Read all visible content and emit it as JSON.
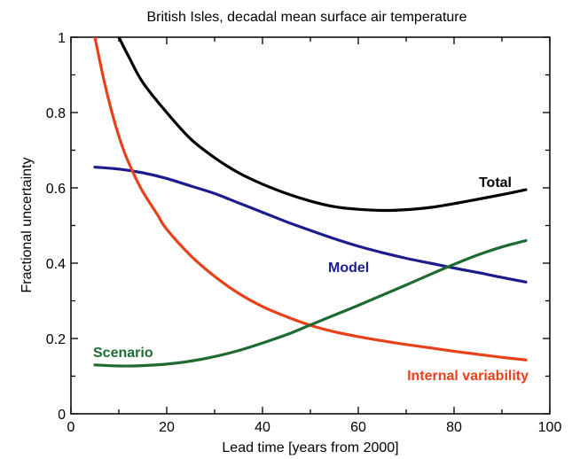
{
  "chart_data": {
    "type": "line",
    "title": "British Isles, decadal mean surface air temperature",
    "xlabel": "Lead time  [years from 2000]",
    "ylabel": "Fractional uncertainty",
    "xlim": [
      0,
      100
    ],
    "ylim": [
      0,
      1
    ],
    "xticks": [
      0,
      20,
      40,
      60,
      80,
      100
    ],
    "yticks": [
      0,
      0.2,
      0.4,
      0.6,
      0.8,
      1
    ],
    "ytick_labels": [
      "0",
      "0.2",
      "0.4",
      "0.6",
      "0.8",
      "1"
    ],
    "grid": false,
    "series": [
      {
        "name": "Total",
        "color": "#000000",
        "x": [
          10,
          12,
          15,
          20,
          25,
          30,
          35,
          40,
          45,
          50,
          55,
          60,
          65,
          70,
          75,
          80,
          85,
          90,
          95
        ],
        "y": [
          1.0,
          0.95,
          0.88,
          0.8,
          0.73,
          0.68,
          0.64,
          0.61,
          0.585,
          0.565,
          0.55,
          0.543,
          0.54,
          0.542,
          0.548,
          0.558,
          0.57,
          0.582,
          0.595
        ]
      },
      {
        "name": "Model",
        "color": "#1c1c8c",
        "x": [
          5,
          10,
          15,
          20,
          25,
          30,
          35,
          40,
          45,
          50,
          55,
          60,
          65,
          70,
          75,
          80,
          85,
          90,
          95
        ],
        "y": [
          0.655,
          0.65,
          0.64,
          0.625,
          0.605,
          0.585,
          0.56,
          0.535,
          0.51,
          0.487,
          0.465,
          0.445,
          0.428,
          0.413,
          0.4,
          0.387,
          0.375,
          0.362,
          0.35
        ]
      },
      {
        "name": "Internal variability",
        "color": "#e8411a",
        "x": [
          5,
          7,
          9,
          11,
          13,
          15,
          18,
          20,
          25,
          30,
          35,
          40,
          45,
          50,
          55,
          60,
          65,
          70,
          75,
          80,
          85,
          90,
          95
        ],
        "y": [
          1.0,
          0.88,
          0.78,
          0.7,
          0.64,
          0.59,
          0.53,
          0.49,
          0.42,
          0.365,
          0.32,
          0.285,
          0.258,
          0.235,
          0.218,
          0.205,
          0.194,
          0.184,
          0.175,
          0.166,
          0.158,
          0.15,
          0.143
        ]
      },
      {
        "name": "Scenario",
        "color": "#1e6b31",
        "x": [
          5,
          10,
          15,
          20,
          25,
          30,
          35,
          40,
          45,
          50,
          55,
          60,
          65,
          70,
          75,
          80,
          85,
          90,
          95
        ],
        "y": [
          0.13,
          0.127,
          0.128,
          0.132,
          0.14,
          0.152,
          0.168,
          0.188,
          0.21,
          0.236,
          0.262,
          0.288,
          0.315,
          0.342,
          0.37,
          0.397,
          0.422,
          0.443,
          0.46
        ]
      }
    ]
  }
}
